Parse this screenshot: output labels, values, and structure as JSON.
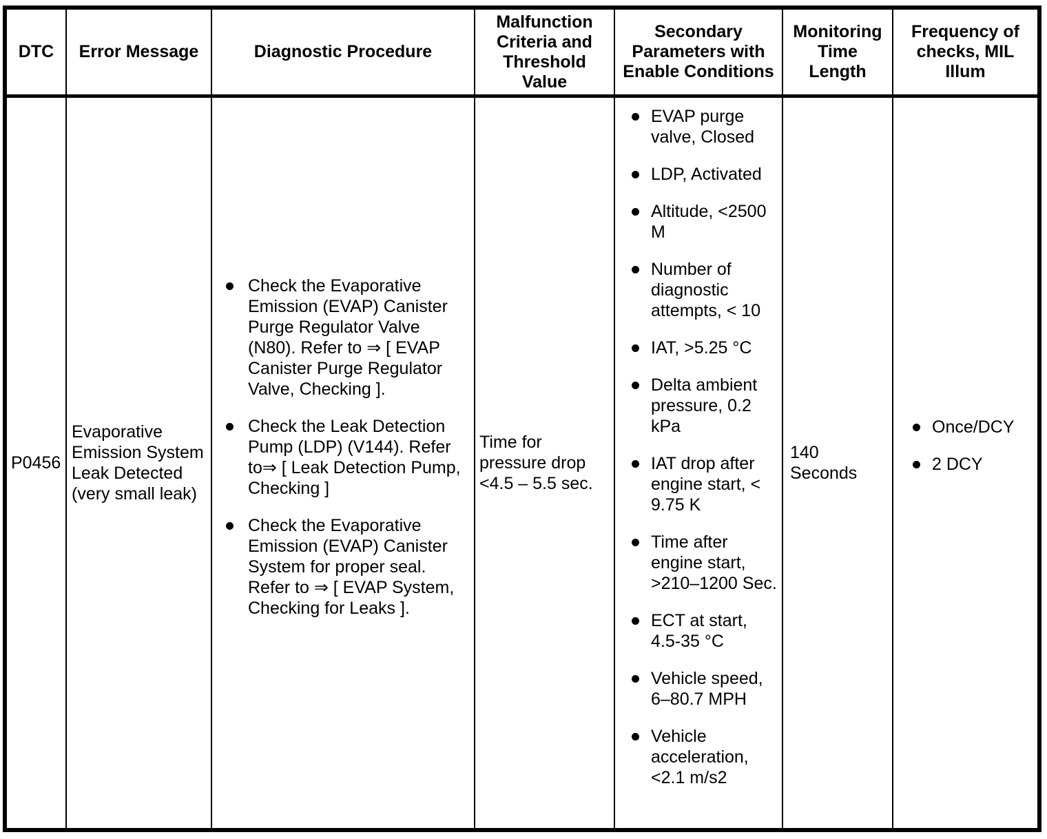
{
  "table": {
    "colors": {
      "border": "#000000",
      "text": "#000000",
      "background": "#ffffff"
    },
    "header": {
      "columns": [
        "DTC",
        "Error Message",
        "Diagnostic Procedure",
        "Malfunction\nCriteria and\nThreshold\nValue",
        "Secondary\nParameters with\nEnable Conditions",
        "Monitoring\nTime\nLength",
        "Frequency of\nchecks, MIL\nIllum"
      ]
    },
    "row": {
      "dtc": "P0456",
      "error_message": "Evaporative\nEmission System\nLeak Detected\n(very small leak)",
      "diagnostic_procedure": [
        "Check the Evaporative\nEmission (EVAP) Canister\nPurge Regulator Valve\n(N80). Refer to ⇒ [ EVAP\nCanister Purge Regulator\nValve, Checking ].",
        "Check the Leak Detection\nPump (LDP) (V144). Refer\nto⇒ [ Leak Detection Pump,\nChecking ]",
        "Check the Evaporative\nEmission (EVAP) Canister\nSystem for proper seal.\nRefer to ⇒ [ EVAP System,\nChecking for Leaks ]."
      ],
      "malfunction_criteria": "Time for\npressure drop\n<4.5 – 5.5 sec.",
      "secondary_parameters": [
        "EVAP purge\nvalve, Closed",
        "LDP, Activated",
        "Altitude, <2500\nM",
        "Number of\ndiagnostic\nattempts, < 10",
        "IAT, >5.25 °C",
        "Delta ambient\npressure, 0.2\nkPa",
        "IAT drop after\nengine start, <\n9.75 K",
        "Time after\nengine start,\n>210–1200 Sec.",
        "ECT at start,\n4.5-35 °C",
        "Vehicle speed,\n6–80.7 MPH",
        "Vehicle\nacceleration,\n<2.1 m/s2"
      ],
      "monitoring_time": "140\nSeconds",
      "frequency_of_checks": [
        "Once/DCY",
        "2 DCY"
      ]
    }
  }
}
